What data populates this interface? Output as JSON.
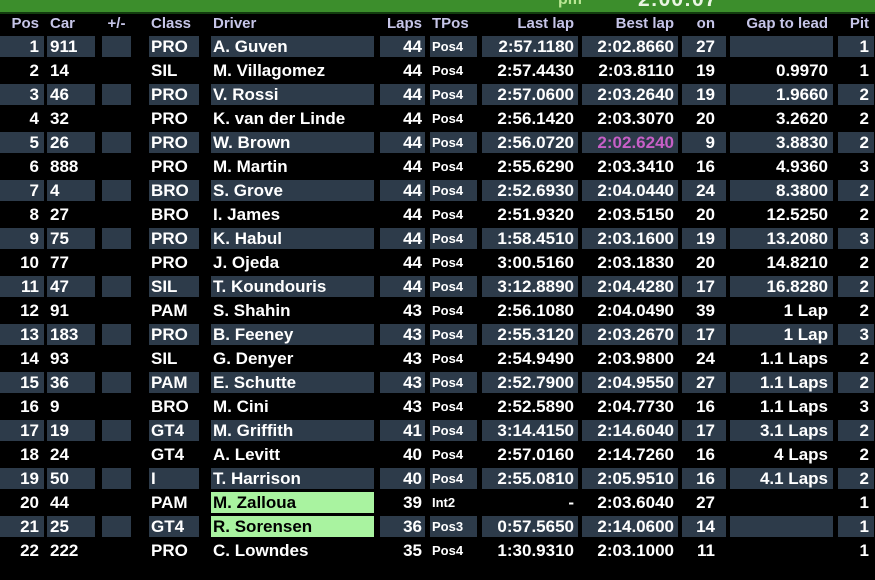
{
  "status_bar": {
    "left_text": "pm",
    "right_text": "2:00:07"
  },
  "colors": {
    "background": "#000000",
    "status_bar_green": "#3c8e2c",
    "row_stripe": "#2d3b4a",
    "header_text": "#c6c5e8",
    "text": "#ffffff",
    "best_lap_highlight": "#c75fc7",
    "driver_highlight_green": "#a9f3a0"
  },
  "table": {
    "columns": [
      {
        "key": "pos",
        "label": "Pos"
      },
      {
        "key": "car",
        "label": "Car"
      },
      {
        "key": "pm",
        "label": "+/-"
      },
      {
        "key": "cls",
        "label": "Class"
      },
      {
        "key": "driver",
        "label": "Driver"
      },
      {
        "key": "laps",
        "label": "Laps"
      },
      {
        "key": "tpos",
        "label": "TPos"
      },
      {
        "key": "last",
        "label": "Last lap"
      },
      {
        "key": "best",
        "label": "Best lap"
      },
      {
        "key": "on",
        "label": "on"
      },
      {
        "key": "gap",
        "label": "Gap to lead"
      },
      {
        "key": "pit",
        "label": "Pit"
      }
    ],
    "rows": [
      {
        "pos": "1",
        "car": "911",
        "pm": "",
        "cls": "PRO",
        "driver": "A. Guven",
        "laps": "44",
        "tpos": "Pos4",
        "last": "2:57.1180",
        "best": "2:02.8660",
        "on": "27",
        "gap": "",
        "pit": "1"
      },
      {
        "pos": "2",
        "car": "14",
        "pm": "",
        "cls": "SIL",
        "driver": "M. Villagomez",
        "laps": "44",
        "tpos": "Pos4",
        "last": "2:57.4430",
        "best": "2:03.8110",
        "on": "19",
        "gap": "0.9970",
        "pit": "1"
      },
      {
        "pos": "3",
        "car": "46",
        "pm": "",
        "cls": "PRO",
        "driver": "V. Rossi",
        "laps": "44",
        "tpos": "Pos4",
        "last": "2:57.0600",
        "best": "2:03.2640",
        "on": "19",
        "gap": "1.9660",
        "pit": "2"
      },
      {
        "pos": "4",
        "car": "32",
        "pm": "",
        "cls": "PRO",
        "driver": "K. van der Linde",
        "laps": "44",
        "tpos": "Pos4",
        "last": "2:56.1420",
        "best": "2:03.3070",
        "on": "20",
        "gap": "3.2620",
        "pit": "2"
      },
      {
        "pos": "5",
        "car": "26",
        "pm": "",
        "cls": "PRO",
        "driver": "W. Brown",
        "laps": "44",
        "tpos": "Pos4",
        "last": "2:56.0720",
        "best": "2:02.6240",
        "on": "9",
        "gap": "3.8830",
        "pit": "2",
        "best_highlight": true
      },
      {
        "pos": "6",
        "car": "888",
        "pm": "",
        "cls": "PRO",
        "driver": "M. Martin",
        "laps": "44",
        "tpos": "Pos4",
        "last": "2:55.6290",
        "best": "2:03.3410",
        "on": "16",
        "gap": "4.9360",
        "pit": "3"
      },
      {
        "pos": "7",
        "car": "4",
        "pm": "",
        "cls": "BRO",
        "driver": "S. Grove",
        "laps": "44",
        "tpos": "Pos4",
        "last": "2:52.6930",
        "best": "2:04.0440",
        "on": "24",
        "gap": "8.3800",
        "pit": "2"
      },
      {
        "pos": "8",
        "car": "27",
        "pm": "",
        "cls": "BRO",
        "driver": "I. James",
        "laps": "44",
        "tpos": "Pos4",
        "last": "2:51.9320",
        "best": "2:03.5150",
        "on": "20",
        "gap": "12.5250",
        "pit": "2"
      },
      {
        "pos": "9",
        "car": "75",
        "pm": "",
        "cls": "PRO",
        "driver": "K. Habul",
        "laps": "44",
        "tpos": "Pos4",
        "last": "1:58.4510",
        "best": "2:03.1600",
        "on": "19",
        "gap": "13.2080",
        "pit": "3"
      },
      {
        "pos": "10",
        "car": "77",
        "pm": "",
        "cls": "PRO",
        "driver": "J. Ojeda",
        "laps": "44",
        "tpos": "Pos4",
        "last": "3:00.5160",
        "best": "2:03.1830",
        "on": "20",
        "gap": "14.8210",
        "pit": "2"
      },
      {
        "pos": "11",
        "car": "47",
        "pm": "",
        "cls": "SIL",
        "driver": "T. Koundouris",
        "laps": "44",
        "tpos": "Pos4",
        "last": "3:12.8890",
        "best": "2:04.4280",
        "on": "17",
        "gap": "16.8280",
        "pit": "2"
      },
      {
        "pos": "12",
        "car": "91",
        "pm": "",
        "cls": "PAM",
        "driver": "S. Shahin",
        "laps": "43",
        "tpos": "Pos4",
        "last": "2:56.1080",
        "best": "2:04.0490",
        "on": "39",
        "gap": "1 Lap",
        "pit": "2"
      },
      {
        "pos": "13",
        "car": "183",
        "pm": "",
        "cls": "PRO",
        "driver": "B. Feeney",
        "laps": "43",
        "tpos": "Pos4",
        "last": "2:55.3120",
        "best": "2:03.2670",
        "on": "17",
        "gap": "1 Lap",
        "pit": "3"
      },
      {
        "pos": "14",
        "car": "93",
        "pm": "",
        "cls": "SIL",
        "driver": "G. Denyer",
        "laps": "43",
        "tpos": "Pos4",
        "last": "2:54.9490",
        "best": "2:03.9800",
        "on": "24",
        "gap": "1.1 Laps",
        "pit": "2"
      },
      {
        "pos": "15",
        "car": "36",
        "pm": "",
        "cls": "PAM",
        "driver": "E. Schutte",
        "laps": "43",
        "tpos": "Pos4",
        "last": "2:52.7900",
        "best": "2:04.9550",
        "on": "27",
        "gap": "1.1 Laps",
        "pit": "2"
      },
      {
        "pos": "16",
        "car": "9",
        "pm": "",
        "cls": "BRO",
        "driver": "M. Cini",
        "laps": "43",
        "tpos": "Pos4",
        "last": "2:52.5890",
        "best": "2:04.7730",
        "on": "16",
        "gap": "1.1 Laps",
        "pit": "3"
      },
      {
        "pos": "17",
        "car": "19",
        "pm": "",
        "cls": "GT4",
        "driver": "M. Griffith",
        "laps": "41",
        "tpos": "Pos4",
        "last": "3:14.4150",
        "best": "2:14.6040",
        "on": "17",
        "gap": "3.1 Laps",
        "pit": "2"
      },
      {
        "pos": "18",
        "car": "24",
        "pm": "",
        "cls": "GT4",
        "driver": "A. Levitt",
        "laps": "40",
        "tpos": "Pos4",
        "last": "2:57.0160",
        "best": "2:14.7260",
        "on": "16",
        "gap": "4 Laps",
        "pit": "2"
      },
      {
        "pos": "19",
        "car": "50",
        "pm": "",
        "cls": "I",
        "driver": "T. Harrison",
        "laps": "40",
        "tpos": "Pos4",
        "last": "2:55.0810",
        "best": "2:05.9510",
        "on": "16",
        "gap": "4.1 Laps",
        "pit": "2"
      },
      {
        "pos": "20",
        "car": "44",
        "pm": "",
        "cls": "PAM",
        "driver": "M. Zalloua",
        "laps": "39",
        "tpos": "Int2",
        "last": "-",
        "best": "2:03.6040",
        "on": "27",
        "gap": "",
        "pit": "1",
        "driver_highlight": true
      },
      {
        "pos": "21",
        "car": "25",
        "pm": "",
        "cls": "GT4",
        "driver": "R. Sorensen",
        "laps": "36",
        "tpos": "Pos3",
        "last": "0:57.5650",
        "best": "2:14.0600",
        "on": "14",
        "gap": "",
        "pit": "1",
        "driver_highlight": true
      },
      {
        "pos": "22",
        "car": "222",
        "pm": "",
        "cls": "PRO",
        "driver": "C. Lowndes",
        "laps": "35",
        "tpos": "Pos4",
        "last": "1:30.9310",
        "best": "2:03.1000",
        "on": "11",
        "gap": "",
        "pit": "1"
      }
    ]
  }
}
